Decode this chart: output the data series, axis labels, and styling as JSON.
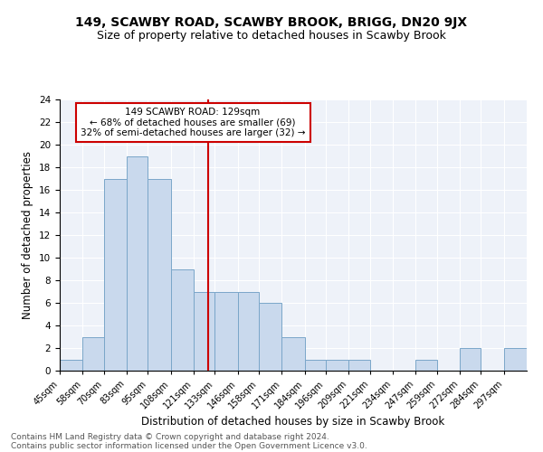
{
  "title": "149, SCAWBY ROAD, SCAWBY BROOK, BRIGG, DN20 9JX",
  "subtitle": "Size of property relative to detached houses in Scawby Brook",
  "xlabel": "Distribution of detached houses by size in Scawby Brook",
  "ylabel": "Number of detached properties",
  "bin_labels": [
    "45sqm",
    "58sqm",
    "70sqm",
    "83sqm",
    "95sqm",
    "108sqm",
    "121sqm",
    "133sqm",
    "146sqm",
    "158sqm",
    "171sqm",
    "184sqm",
    "196sqm",
    "209sqm",
    "221sqm",
    "234sqm",
    "247sqm",
    "259sqm",
    "272sqm",
    "284sqm",
    "297sqm"
  ],
  "bar_values": [
    1,
    3,
    17,
    19,
    17,
    9,
    7,
    7,
    7,
    6,
    3,
    1,
    1,
    1,
    0,
    0,
    1,
    0,
    2,
    0,
    2
  ],
  "bar_color": "#c9d9ed",
  "bar_edgecolor": "#7aa6c9",
  "vline_x": 129,
  "vline_color": "#cc0000",
  "bin_edges": [
    45,
    58,
    70,
    83,
    95,
    108,
    121,
    133,
    146,
    158,
    171,
    184,
    196,
    209,
    221,
    234,
    247,
    259,
    272,
    284,
    297
  ],
  "annotation_title": "149 SCAWBY ROAD: 129sqm",
  "annotation_line1": "← 68% of detached houses are smaller (69)",
  "annotation_line2": "32% of semi-detached houses are larger (32) →",
  "annotation_box_color": "#ffffff",
  "annotation_box_edgecolor": "#cc0000",
  "ylim": [
    0,
    24
  ],
  "yticks": [
    0,
    2,
    4,
    6,
    8,
    10,
    12,
    14,
    16,
    18,
    20,
    22,
    24
  ],
  "footnote1": "Contains HM Land Registry data © Crown copyright and database right 2024.",
  "footnote2": "Contains public sector information licensed under the Open Government Licence v3.0.",
  "bg_color": "#eef2f9",
  "title_fontsize": 10,
  "subtitle_fontsize": 9,
  "xlabel_fontsize": 8.5,
  "ylabel_fontsize": 8.5,
  "footnote_fontsize": 6.5
}
